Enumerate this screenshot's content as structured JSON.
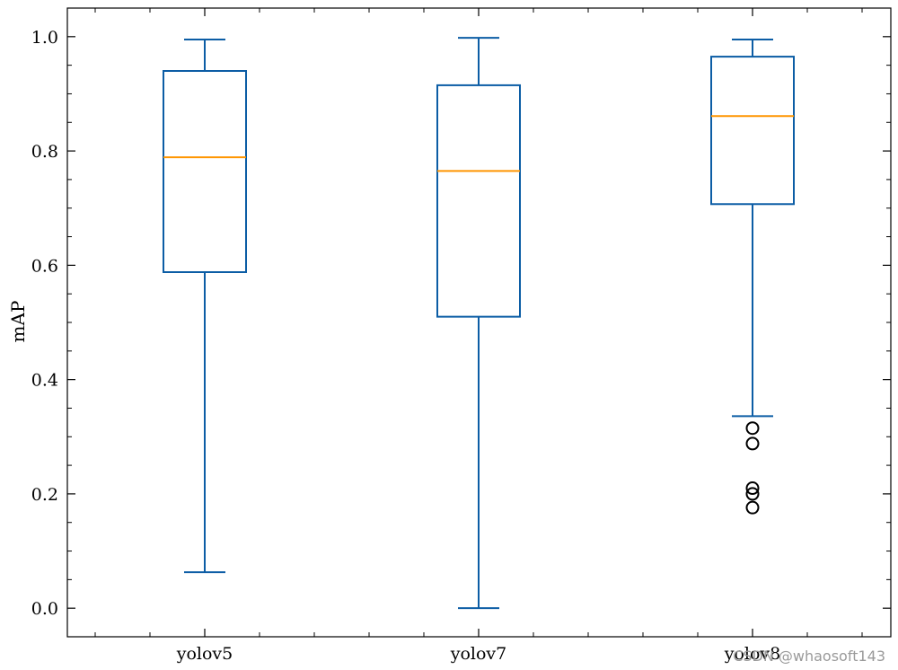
{
  "chart_data": {
    "type": "box",
    "categories": [
      "yolov5",
      "yolov7",
      "yolov8"
    ],
    "ylabel": "mAP",
    "ylim": [
      -0.05,
      1.05
    ],
    "yticks": [
      "0.0",
      "0.2",
      "0.4",
      "0.6",
      "0.8",
      "1.0"
    ],
    "boxes": [
      {
        "name": "yolov5",
        "whisker_low": 0.063,
        "q1": 0.588,
        "median": 0.789,
        "q3": 0.94,
        "whisker_high": 0.995,
        "outliers": []
      },
      {
        "name": "yolov7",
        "whisker_low": 0.0,
        "q1": 0.51,
        "median": 0.765,
        "q3": 0.915,
        "whisker_high": 0.998,
        "outliers": []
      },
      {
        "name": "yolov8",
        "whisker_low": 0.336,
        "q1": 0.707,
        "median": 0.861,
        "q3": 0.965,
        "whisker_high": 0.995,
        "outliers": [
          0.315,
          0.288,
          0.21,
          0.2,
          0.176
        ]
      }
    ],
    "colors": {
      "box": "#0c5da5",
      "median": "#ff9500",
      "outlier": "#000000"
    },
    "grid": false
  },
  "watermark": "CSDN @whaosoft143"
}
